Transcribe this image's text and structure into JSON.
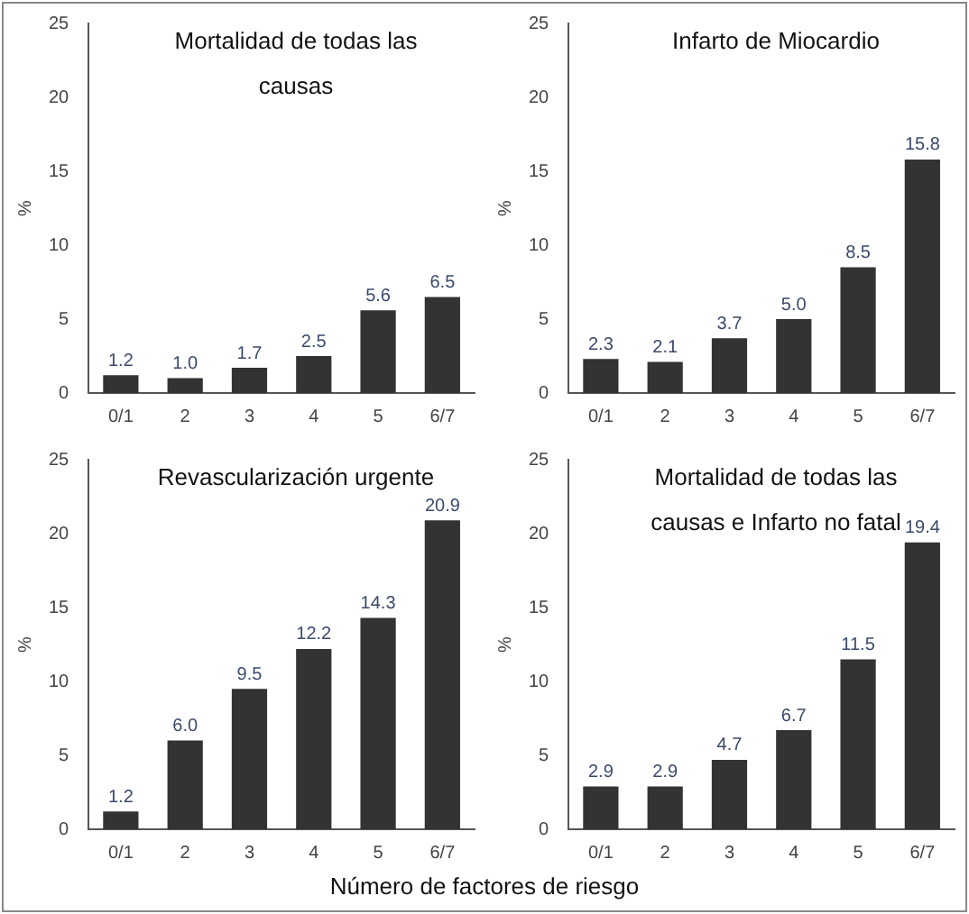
{
  "chart_data": [
    {
      "type": "bar",
      "title": "Mortalidad de todas las causas",
      "ylabel": "%",
      "categories": [
        "0/1",
        "2",
        "3",
        "4",
        "5",
        "6/7"
      ],
      "values": [
        1.2,
        1.0,
        1.7,
        2.5,
        5.6,
        6.5
      ],
      "value_labels": [
        "1.2",
        "1.0",
        "1.7",
        "2.5",
        "5.6",
        "6.5"
      ],
      "color": "#333333",
      "ylim": [
        0,
        25
      ],
      "yticks": [
        0,
        5,
        10,
        15,
        20,
        25
      ],
      "grid": false,
      "legend": false
    },
    {
      "type": "bar",
      "title": "Infarto de Miocardio",
      "ylabel": "%",
      "categories": [
        "0/1",
        "2",
        "3",
        "4",
        "5",
        "6/7"
      ],
      "values": [
        2.3,
        2.1,
        3.7,
        5.0,
        8.5,
        15.8
      ],
      "value_labels": [
        "2.3",
        "2.1",
        "3.7",
        "5.0",
        "8.5",
        "15.8"
      ],
      "color": "#333333",
      "ylim": [
        0,
        25
      ],
      "yticks": [
        0,
        5,
        10,
        15,
        20,
        25
      ],
      "grid": false,
      "legend": false
    },
    {
      "type": "bar",
      "title": "Revascularización urgente",
      "ylabel": "%",
      "categories": [
        "0/1",
        "2",
        "3",
        "4",
        "5",
        "6/7"
      ],
      "values": [
        1.2,
        6.0,
        9.5,
        12.2,
        14.3,
        20.9
      ],
      "value_labels": [
        "1.2",
        "6.0",
        "9.5",
        "12.2",
        "14.3",
        "20.9"
      ],
      "color": "#333333",
      "ylim": [
        0,
        25
      ],
      "yticks": [
        0,
        5,
        10,
        15,
        20,
        25
      ],
      "grid": false,
      "legend": false
    },
    {
      "type": "bar",
      "title": "Mortalidad de todas las causas e Infarto no fatal",
      "ylabel": "%",
      "xlabel": "Número de factores de riesgo",
      "categories": [
        "0/1",
        "2",
        "3",
        "4",
        "5",
        "6/7"
      ],
      "values": [
        2.9,
        2.9,
        4.7,
        6.7,
        11.5,
        19.4
      ],
      "value_labels": [
        "2.9",
        "2.9",
        "4.7",
        "6.7",
        "11.5",
        "19.4"
      ],
      "color": "#333333",
      "ylim": [
        0,
        25
      ],
      "yticks": [
        0,
        5,
        10,
        15,
        20,
        25
      ],
      "grid": false,
      "legend": false
    }
  ]
}
